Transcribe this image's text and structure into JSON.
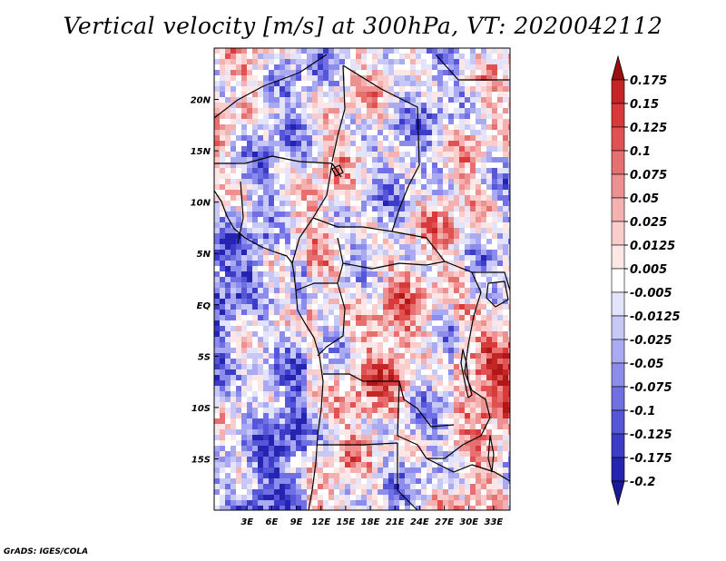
{
  "title": "Vertical velocity [m/s] at 300hPa, VT: 2020042112",
  "credit": "GrADS: IGES/COLA",
  "map": {
    "lon_range": [
      -1,
      35
    ],
    "lat_range": [
      -20,
      25
    ],
    "lon_ticks": [
      {
        "value": 3,
        "label": "3E"
      },
      {
        "value": 6,
        "label": "6E"
      },
      {
        "value": 9,
        "label": "9E"
      },
      {
        "value": 12,
        "label": "12E"
      },
      {
        "value": 15,
        "label": "15E"
      },
      {
        "value": 18,
        "label": "18E"
      },
      {
        "value": 21,
        "label": "21E"
      },
      {
        "value": 24,
        "label": "24E"
      },
      {
        "value": 27,
        "label": "27E"
      },
      {
        "value": 30,
        "label": "30E"
      },
      {
        "value": 33,
        "label": "33E"
      }
    ],
    "lat_ticks": [
      {
        "value": 20,
        "label": "20N"
      },
      {
        "value": 15,
        "label": "15N"
      },
      {
        "value": 10,
        "label": "10N"
      },
      {
        "value": 5,
        "label": "5N"
      },
      {
        "value": 0,
        "label": "EQ"
      },
      {
        "value": -5,
        "label": "5S"
      },
      {
        "value": -10,
        "label": "10S"
      },
      {
        "value": -15,
        "label": "15S"
      }
    ]
  },
  "colorbar": {
    "levels": [
      {
        "label": "0.175",
        "color": "#b01818"
      },
      {
        "label": "0.15",
        "color": "#c42626"
      },
      {
        "label": "0.125",
        "color": "#d63a3a"
      },
      {
        "label": "0.1",
        "color": "#e05252"
      },
      {
        "label": "0.075",
        "color": "#e67070"
      },
      {
        "label": "0.05",
        "color": "#ee9090"
      },
      {
        "label": "0.025",
        "color": "#f5b0b0"
      },
      {
        "label": "0.0125",
        "color": "#facccc"
      },
      {
        "label": "0.005",
        "color": "#fde6e6"
      },
      {
        "label": "-0.005",
        "color": "#ffffff"
      },
      {
        "label": "-0.0125",
        "color": "#e3e3fb"
      },
      {
        "label": "-0.025",
        "color": "#c8c8f6"
      },
      {
        "label": "-0.05",
        "color": "#aaaaf2"
      },
      {
        "label": "-0.075",
        "color": "#8c8cec"
      },
      {
        "label": "-0.1",
        "color": "#7070e4"
      },
      {
        "label": "-0.125",
        "color": "#5656d8"
      },
      {
        "label": "-0.175",
        "color": "#3c3cc8"
      },
      {
        "label": "-0.2",
        "color": "#2424b0"
      }
    ],
    "top_arrow_color": "#9a0e0e",
    "bottom_arrow_color": "#1a1a98"
  }
}
